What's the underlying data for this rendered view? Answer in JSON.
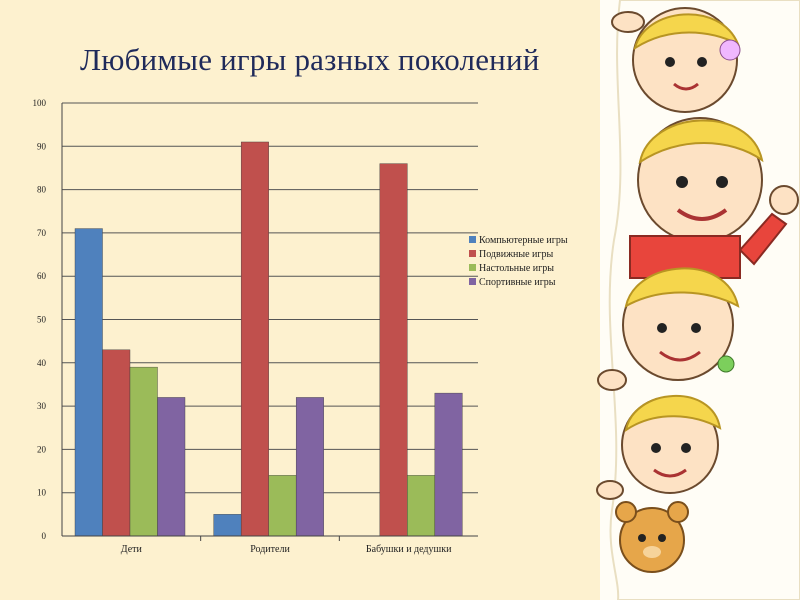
{
  "slide": {
    "title": "Любимые игры разных поколений"
  },
  "colors": {
    "background": "#fdf1cf",
    "title": "#1f2a5a"
  },
  "illustration": {
    "name": "cartoon-children-peeking",
    "description_icon": "children-illustration"
  },
  "chart_data": {
    "type": "bar",
    "categories": [
      "Дети",
      "Родители",
      "Бабушки и дедушки"
    ],
    "series": [
      {
        "name": "Компьютерные игры",
        "color": "#4f81bd",
        "values": [
          71,
          5,
          0
        ]
      },
      {
        "name": "Подвижные игры",
        "color": "#c0504d",
        "values": [
          43,
          91,
          86
        ]
      },
      {
        "name": "Настольные игры",
        "color": "#9bbb59",
        "values": [
          39,
          14,
          14
        ]
      },
      {
        "name": "Спортивные игры",
        "color": "#8064a2",
        "values": [
          32,
          32,
          33
        ]
      }
    ],
    "ylim": [
      0,
      100
    ],
    "yticks": [
      0,
      10,
      20,
      30,
      40,
      50,
      60,
      70,
      80,
      90,
      100
    ],
    "grid": true,
    "legend_position": "right"
  }
}
